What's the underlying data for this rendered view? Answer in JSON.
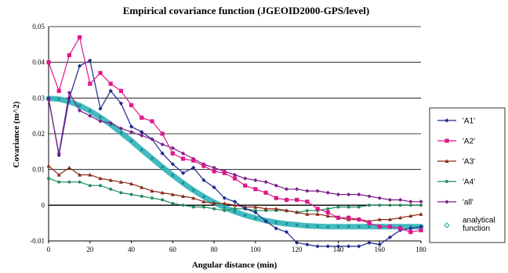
{
  "chart_data": {
    "type": "line",
    "title": "Empirical covariance function (JGEOID2000-GPS/level)",
    "xlabel": "Angular distance (min)",
    "ylabel": "Covariance (m^2)",
    "xlim": [
      0,
      180
    ],
    "ylim": [
      -0.01,
      0.05
    ],
    "x_ticks": [
      0,
      20,
      40,
      60,
      80,
      100,
      120,
      140,
      160,
      180
    ],
    "y_ticks": [
      -0.01,
      0,
      0.01,
      0.02,
      0.03,
      0.04,
      0.05
    ],
    "y_tick_labels": [
      "-0.01",
      "0",
      "0.01",
      "0.02",
      "0.03",
      "0.04",
      "0.05"
    ],
    "grid": "horizontal",
    "legend_position": "right",
    "series": [
      {
        "name": "'A1'",
        "color": "#1f2a8c",
        "marker": "diamond",
        "x": [
          0,
          5,
          10,
          15,
          20,
          25,
          30,
          35,
          40,
          45,
          50,
          55,
          60,
          65,
          70,
          75,
          80,
          85,
          90,
          95,
          100,
          105,
          110,
          115,
          120,
          125,
          130,
          135,
          140,
          145,
          150,
          155,
          160,
          165,
          170,
          175,
          180
        ],
        "y": [
          0.03,
          0.014,
          0.03,
          0.039,
          0.0405,
          0.027,
          0.032,
          0.0285,
          0.022,
          0.0205,
          0.0185,
          0.0145,
          0.0115,
          0.009,
          0.0105,
          0.007,
          0.005,
          0.002,
          0.001,
          -0.001,
          -0.002,
          -0.0045,
          -0.0065,
          -0.0075,
          -0.0105,
          -0.011,
          -0.0115,
          -0.0115,
          -0.0115,
          -0.0115,
          -0.0115,
          -0.0105,
          -0.011,
          -0.009,
          -0.007,
          -0.0065,
          -0.006
        ]
      },
      {
        "name": "'A2'",
        "color": "#e0168b",
        "marker": "square",
        "x": [
          0,
          5,
          10,
          15,
          20,
          25,
          30,
          35,
          40,
          45,
          50,
          55,
          60,
          65,
          70,
          75,
          80,
          85,
          90,
          95,
          100,
          105,
          110,
          115,
          120,
          125,
          130,
          135,
          140,
          145,
          150,
          155,
          160,
          165,
          170,
          175,
          180
        ],
        "y": [
          0.04,
          0.032,
          0.042,
          0.047,
          0.034,
          0.037,
          0.034,
          0.032,
          0.028,
          0.0245,
          0.0235,
          0.02,
          0.0145,
          0.013,
          0.0125,
          0.011,
          0.0095,
          0.009,
          0.0075,
          0.0055,
          0.0045,
          0.0035,
          0.002,
          0.0015,
          0.0015,
          0.001,
          -0.001,
          -0.002,
          -0.0035,
          -0.0035,
          -0.004,
          -0.005,
          -0.006,
          -0.006,
          -0.0065,
          -0.0075,
          -0.007
        ]
      },
      {
        "name": "'A3'",
        "color": "#8b2a1a",
        "marker": "triangle",
        "x": [
          0,
          5,
          10,
          15,
          20,
          25,
          30,
          35,
          40,
          45,
          50,
          55,
          60,
          65,
          70,
          75,
          80,
          85,
          90,
          95,
          100,
          105,
          110,
          115,
          120,
          125,
          130,
          135,
          140,
          145,
          150,
          155,
          160,
          165,
          170,
          175,
          180
        ],
        "y": [
          0.011,
          0.0085,
          0.0105,
          0.0085,
          0.0085,
          0.0075,
          0.007,
          0.0065,
          0.006,
          0.005,
          0.004,
          0.0035,
          0.003,
          0.0025,
          0.002,
          0.001,
          0.0005,
          0.0005,
          0,
          -0.0005,
          -0.0005,
          -0.001,
          -0.001,
          -0.0015,
          -0.002,
          -0.0025,
          -0.0025,
          -0.003,
          -0.0035,
          -0.004,
          -0.004,
          -0.0045,
          -0.004,
          -0.004,
          -0.0035,
          -0.003,
          -0.0025
        ]
      },
      {
        "name": "'A4'",
        "color": "#1e8a5a",
        "marker": "dot",
        "x": [
          0,
          5,
          10,
          15,
          20,
          25,
          30,
          35,
          40,
          45,
          50,
          55,
          60,
          65,
          70,
          75,
          80,
          85,
          90,
          95,
          100,
          105,
          110,
          115,
          120,
          125,
          130,
          135,
          140,
          145,
          150,
          155,
          160,
          165,
          170,
          175,
          180
        ],
        "y": [
          0.0075,
          0.0065,
          0.0065,
          0.0065,
          0.0055,
          0.0055,
          0.0045,
          0.0035,
          0.003,
          0.0025,
          0.002,
          0.0015,
          0.0005,
          0,
          -0.0005,
          -0.0005,
          -0.001,
          -0.0015,
          -0.001,
          -0.001,
          -0.0015,
          -0.0015,
          -0.0015,
          -0.0015,
          -0.002,
          -0.0015,
          -0.0015,
          -0.001,
          -0.0005,
          -0.0005,
          -0.0005,
          0,
          0,
          0,
          0,
          0,
          0
        ]
      },
      {
        "name": "'all'",
        "color": "#7a1f8a",
        "marker": "diamond",
        "x": [
          0,
          5,
          10,
          15,
          20,
          25,
          30,
          35,
          40,
          45,
          50,
          55,
          60,
          65,
          70,
          75,
          80,
          85,
          90,
          95,
          100,
          105,
          110,
          115,
          120,
          125,
          130,
          135,
          140,
          145,
          150,
          155,
          160,
          165,
          170,
          175,
          180
        ],
        "y": [
          0.0295,
          0.0145,
          0.0315,
          0.0265,
          0.025,
          0.0235,
          0.023,
          0.0215,
          0.0205,
          0.0195,
          0.0185,
          0.017,
          0.016,
          0.0145,
          0.013,
          0.0115,
          0.0105,
          0.0095,
          0.0085,
          0.0075,
          0.007,
          0.0065,
          0.0055,
          0.0045,
          0.0045,
          0.004,
          0.004,
          0.0035,
          0.003,
          0.003,
          0.003,
          0.0025,
          0.002,
          0.0015,
          0.0015,
          0.001,
          0.001
        ]
      },
      {
        "name": "analytical function",
        "color": "#2fb3b8",
        "marker": "diamond-open",
        "x": [
          0,
          5,
          10,
          15,
          20,
          25,
          30,
          35,
          40,
          45,
          50,
          55,
          60,
          65,
          70,
          75,
          80,
          85,
          90,
          95,
          100,
          105,
          110,
          115,
          120,
          125,
          130,
          135,
          140,
          145,
          150,
          155,
          160,
          165,
          170,
          175,
          180
        ],
        "y": [
          0.0299,
          0.0297,
          0.029,
          0.0279,
          0.0264,
          0.0246,
          0.0226,
          0.0203,
          0.018,
          0.0155,
          0.0131,
          0.0107,
          0.0084,
          0.0062,
          0.0042,
          0.0024,
          0.0008,
          -0.0006,
          -0.0018,
          -0.0028,
          -0.0036,
          -0.0043,
          -0.0048,
          -0.0052,
          -0.0055,
          -0.0058,
          -0.0059,
          -0.006,
          -0.006,
          -0.006,
          -0.006,
          -0.006,
          -0.006,
          -0.006,
          -0.006,
          -0.006,
          -0.006
        ]
      }
    ]
  }
}
